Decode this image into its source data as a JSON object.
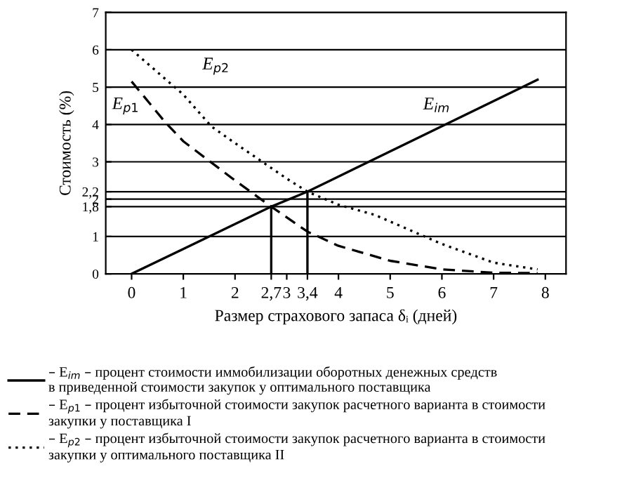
{
  "chart_data": {
    "type": "line",
    "xlabel": "Размер страхового запаса δᵢ (дней)",
    "ylabel": "Стоимость (%)",
    "xlim": [
      -0.5,
      8.4
    ],
    "ylim": [
      0,
      7
    ],
    "xticks": [
      0,
      1,
      2,
      {
        "value": 2.7,
        "label": "2,7"
      },
      3,
      {
        "value": 3.4,
        "label": "3,4"
      },
      4,
      5,
      6,
      7,
      8
    ],
    "yticks": [
      0,
      1,
      {
        "value": 1.8,
        "label": "1,8"
      },
      2,
      {
        "value": 2.2,
        "label": "2,2"
      },
      3,
      4,
      5,
      6,
      7
    ],
    "grid": "y",
    "legend": "bottom",
    "series": [
      {
        "name": "– E$_{im}$ – процент стоимости иммобилизации оборотных денежных средств\nв приведенной стоимости закупок у оптимального поставщика",
        "color": "#000000",
        "line_style": "solid",
        "x": [
          0,
          2.7,
          3.4,
          7.85
        ],
        "values": [
          0,
          1.8,
          2.2,
          5.2
        ]
      },
      {
        "name": "– E$_{p1}$ – процент избыточной стоимости закупок расчетного варианта в стоимости\nзакупки у поставщика I",
        "color": "#000000",
        "line_style": "dashed",
        "x": [
          0,
          0.65,
          1,
          2,
          2.7,
          3.4,
          4,
          5,
          6,
          7,
          7.85
        ],
        "values": [
          5.15,
          4.06,
          3.55,
          2.5,
          1.8,
          1.13,
          0.75,
          0.35,
          0.12,
          0.03,
          0.02
        ]
      },
      {
        "name": "– E$_{p2}$ – процент избыточной стоимости закупок расчетного варианта в стоимости\nзакупки у оптимального поставщика II",
        "color": "#000000",
        "line_style": "dotted",
        "x": [
          0,
          1,
          1.54,
          2,
          3,
          3.4,
          4,
          4.7,
          5,
          6,
          7,
          7.85
        ],
        "values": [
          6.0,
          4.8,
          3.95,
          3.5,
          2.55,
          2.2,
          1.85,
          1.58,
          1.4,
          0.8,
          0.3,
          0.12
        ]
      },
      {
        "color": "#000000",
        "line_style": "solid",
        "x": [
          2.7,
          2.7
        ],
        "values": [
          0,
          1.8
        ]
      },
      {
        "color": "#000000",
        "line_style": "solid",
        "x": [
          3.4,
          3.4
        ],
        "values": [
          0,
          2.2
        ]
      }
    ],
    "annotations": [
      {
        "text": "E$_{im}$",
        "x": 6.2,
        "y": 4.1
      },
      {
        "text": "E$_{p1}$",
        "x": 0.3,
        "y": 4.65
      },
      {
        "text": "E$_{p2}$",
        "x": 0.5,
        "y": 5.4
      }
    ]
  }
}
